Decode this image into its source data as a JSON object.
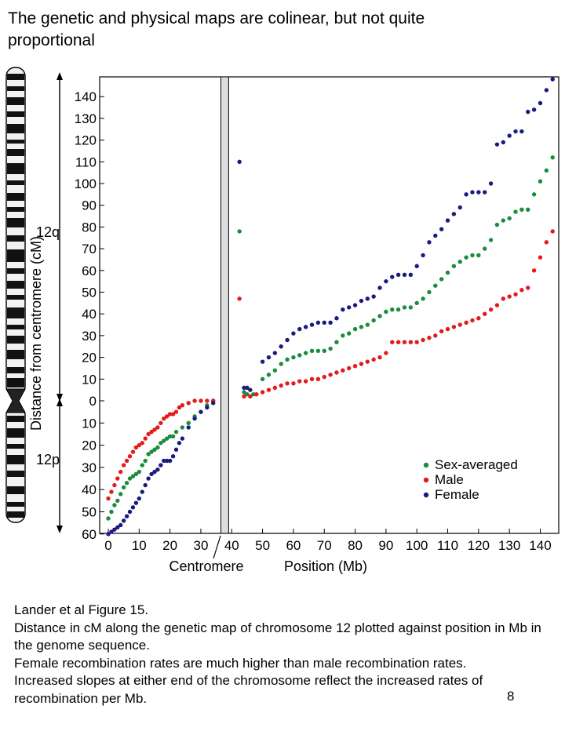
{
  "slide": {
    "title": "The genetic and physical maps are colinear, but not quite proportional",
    "caption_lines": [
      "Lander et al Figure 15.",
      "Distance in cM along the genetic map of chromosome 12 plotted against position in Mb in the genome sequence.",
      "Female recombination rates are much higher than male recombination rates.",
      "Increased slopes at either end of the chromosome reflect the increased rates of recombination per Mb."
    ],
    "page_number": "8"
  },
  "chart_data": {
    "type": "scatter",
    "xlabel": "Position (Mb)",
    "ylabel": "Distance from centromere (cM)",
    "xlim": [
      -1,
      145
    ],
    "x_ticks": [
      0,
      10,
      20,
      30,
      40,
      50,
      60,
      70,
      80,
      90,
      100,
      110,
      120,
      130,
      140
    ],
    "y_ticks_q": [
      0,
      10,
      20,
      30,
      40,
      50,
      60,
      70,
      80,
      90,
      100,
      110,
      120,
      130,
      140
    ],
    "y_ticks_p": [
      10,
      20,
      30,
      40,
      50,
      60
    ],
    "ylim_q": [
      0,
      148
    ],
    "ylim_p": [
      0,
      60
    ],
    "arm_labels": {
      "q": "12q",
      "p": "12p"
    },
    "centromere_label": "Centromere",
    "centromere_band_mb": [
      36.5,
      39.0
    ],
    "grid": false,
    "legend_position": "bottom-right",
    "colors": {
      "sex_averaged": "#1a8c3c",
      "male": "#e21b1b",
      "female": "#1a1a80"
    },
    "series": [
      {
        "name": "Sex-averaged",
        "color": "#1a8c3c",
        "p_points": [
          [
            0,
            53
          ],
          [
            1,
            50
          ],
          [
            2,
            47
          ],
          [
            3,
            45
          ],
          [
            4,
            42
          ],
          [
            5,
            39
          ],
          [
            6,
            37
          ],
          [
            7,
            35
          ],
          [
            8,
            34
          ],
          [
            9,
            33
          ],
          [
            10,
            32
          ],
          [
            11,
            29
          ],
          [
            12,
            27
          ],
          [
            13,
            24
          ],
          [
            14,
            23
          ],
          [
            15,
            22
          ],
          [
            16,
            21
          ],
          [
            17,
            19
          ],
          [
            18,
            18
          ],
          [
            19,
            17
          ],
          [
            20,
            16
          ],
          [
            21,
            16
          ],
          [
            22,
            14
          ],
          [
            24,
            12
          ],
          [
            26,
            10
          ],
          [
            28,
            7
          ],
          [
            30,
            5
          ],
          [
            32,
            2
          ],
          [
            34,
            0
          ]
        ],
        "q_points": [
          [
            42.5,
            78
          ],
          [
            44,
            4
          ],
          [
            45,
            3
          ],
          [
            47,
            3
          ],
          [
            50,
            10
          ],
          [
            52,
            12
          ],
          [
            54,
            14
          ],
          [
            56,
            17
          ],
          [
            58,
            19
          ],
          [
            60,
            20
          ],
          [
            62,
            21
          ],
          [
            64,
            22
          ],
          [
            66,
            23
          ],
          [
            68,
            23
          ],
          [
            70,
            23
          ],
          [
            72,
            24
          ],
          [
            74,
            27
          ],
          [
            76,
            30
          ],
          [
            78,
            31
          ],
          [
            80,
            33
          ],
          [
            82,
            34
          ],
          [
            84,
            35
          ],
          [
            86,
            37
          ],
          [
            88,
            39
          ],
          [
            90,
            41
          ],
          [
            92,
            42
          ],
          [
            94,
            42
          ],
          [
            96,
            43
          ],
          [
            98,
            43
          ],
          [
            100,
            45
          ],
          [
            102,
            47
          ],
          [
            104,
            50
          ],
          [
            106,
            53
          ],
          [
            108,
            56
          ],
          [
            110,
            59
          ],
          [
            112,
            62
          ],
          [
            114,
            64
          ],
          [
            116,
            66
          ],
          [
            118,
            67
          ],
          [
            120,
            67
          ],
          [
            122,
            70
          ],
          [
            124,
            74
          ],
          [
            126,
            81
          ],
          [
            128,
            83
          ],
          [
            130,
            84
          ],
          [
            132,
            87
          ],
          [
            134,
            88
          ],
          [
            136,
            88
          ],
          [
            138,
            95
          ],
          [
            140,
            101
          ],
          [
            142,
            106
          ],
          [
            144,
            112
          ]
        ]
      },
      {
        "name": "Male",
        "color": "#e21b1b",
        "p_points": [
          [
            0,
            44
          ],
          [
            1,
            41
          ],
          [
            2,
            38
          ],
          [
            3,
            35
          ],
          [
            4,
            32
          ],
          [
            5,
            29
          ],
          [
            6,
            27
          ],
          [
            7,
            25
          ],
          [
            8,
            23
          ],
          [
            9,
            21
          ],
          [
            10,
            20
          ],
          [
            11,
            19
          ],
          [
            12,
            17
          ],
          [
            13,
            15
          ],
          [
            14,
            14
          ],
          [
            15,
            13
          ],
          [
            16,
            12
          ],
          [
            17,
            10
          ],
          [
            18,
            8
          ],
          [
            19,
            7
          ],
          [
            20,
            6
          ],
          [
            21,
            6
          ],
          [
            22,
            5
          ],
          [
            23,
            3
          ],
          [
            24,
            2
          ],
          [
            26,
            1
          ],
          [
            28,
            0
          ],
          [
            30,
            0
          ],
          [
            32,
            0
          ],
          [
            34,
            0
          ]
        ],
        "q_points": [
          [
            42.5,
            47
          ],
          [
            44,
            2
          ],
          [
            46,
            2
          ],
          [
            48,
            3
          ],
          [
            50,
            4
          ],
          [
            52,
            5
          ],
          [
            54,
            6
          ],
          [
            56,
            7
          ],
          [
            58,
            8
          ],
          [
            60,
            8
          ],
          [
            62,
            9
          ],
          [
            64,
            9
          ],
          [
            66,
            10
          ],
          [
            68,
            10
          ],
          [
            70,
            11
          ],
          [
            72,
            12
          ],
          [
            74,
            13
          ],
          [
            76,
            14
          ],
          [
            78,
            15
          ],
          [
            80,
            16
          ],
          [
            82,
            17
          ],
          [
            84,
            18
          ],
          [
            86,
            19
          ],
          [
            88,
            20
          ],
          [
            90,
            22
          ],
          [
            92,
            27
          ],
          [
            94,
            27
          ],
          [
            96,
            27
          ],
          [
            98,
            27
          ],
          [
            100,
            27
          ],
          [
            102,
            28
          ],
          [
            104,
            29
          ],
          [
            106,
            30
          ],
          [
            108,
            32
          ],
          [
            110,
            33
          ],
          [
            112,
            34
          ],
          [
            114,
            35
          ],
          [
            116,
            36
          ],
          [
            118,
            37
          ],
          [
            120,
            38
          ],
          [
            122,
            40
          ],
          [
            124,
            42
          ],
          [
            126,
            44
          ],
          [
            128,
            47
          ],
          [
            130,
            48
          ],
          [
            132,
            49
          ],
          [
            134,
            51
          ],
          [
            136,
            52
          ],
          [
            138,
            60
          ],
          [
            140,
            66
          ],
          [
            142,
            73
          ],
          [
            144,
            78
          ]
        ]
      },
      {
        "name": "Female",
        "color": "#1a1a80",
        "p_points": [
          [
            0,
            60
          ],
          [
            1,
            59
          ],
          [
            2,
            58
          ],
          [
            3,
            57
          ],
          [
            4,
            56
          ],
          [
            5,
            54
          ],
          [
            6,
            52
          ],
          [
            7,
            50
          ],
          [
            8,
            48
          ],
          [
            9,
            46
          ],
          [
            10,
            44
          ],
          [
            11,
            41
          ],
          [
            12,
            38
          ],
          [
            13,
            35
          ],
          [
            14,
            33
          ],
          [
            15,
            32
          ],
          [
            16,
            31
          ],
          [
            17,
            29
          ],
          [
            18,
            27
          ],
          [
            19,
            27
          ],
          [
            20,
            27
          ],
          [
            21,
            25
          ],
          [
            22,
            22
          ],
          [
            23,
            19
          ],
          [
            24,
            17
          ],
          [
            26,
            12
          ],
          [
            28,
            8
          ],
          [
            30,
            5
          ],
          [
            32,
            3
          ],
          [
            34,
            1
          ]
        ],
        "q_points": [
          [
            42.5,
            110
          ],
          [
            44,
            6
          ],
          [
            45,
            6
          ],
          [
            46,
            5
          ],
          [
            50,
            18
          ],
          [
            52,
            20
          ],
          [
            54,
            22
          ],
          [
            56,
            25
          ],
          [
            58,
            28
          ],
          [
            60,
            31
          ],
          [
            62,
            33
          ],
          [
            64,
            34
          ],
          [
            66,
            35
          ],
          [
            68,
            36
          ],
          [
            70,
            36
          ],
          [
            72,
            36
          ],
          [
            74,
            38
          ],
          [
            76,
            42
          ],
          [
            78,
            43
          ],
          [
            80,
            44
          ],
          [
            82,
            46
          ],
          [
            84,
            47
          ],
          [
            86,
            48
          ],
          [
            88,
            52
          ],
          [
            90,
            55
          ],
          [
            92,
            57
          ],
          [
            94,
            58
          ],
          [
            96,
            58
          ],
          [
            98,
            58
          ],
          [
            100,
            62
          ],
          [
            102,
            67
          ],
          [
            104,
            73
          ],
          [
            106,
            76
          ],
          [
            108,
            79
          ],
          [
            110,
            83
          ],
          [
            112,
            86
          ],
          [
            114,
            89
          ],
          [
            116,
            95
          ],
          [
            118,
            96
          ],
          [
            120,
            96
          ],
          [
            122,
            96
          ],
          [
            124,
            100
          ],
          [
            126,
            118
          ],
          [
            128,
            119
          ],
          [
            130,
            122
          ],
          [
            132,
            124
          ],
          [
            134,
            124
          ],
          [
            136,
            133
          ],
          [
            138,
            134
          ],
          [
            140,
            137
          ],
          [
            142,
            143
          ],
          [
            144,
            148
          ]
        ]
      }
    ]
  }
}
